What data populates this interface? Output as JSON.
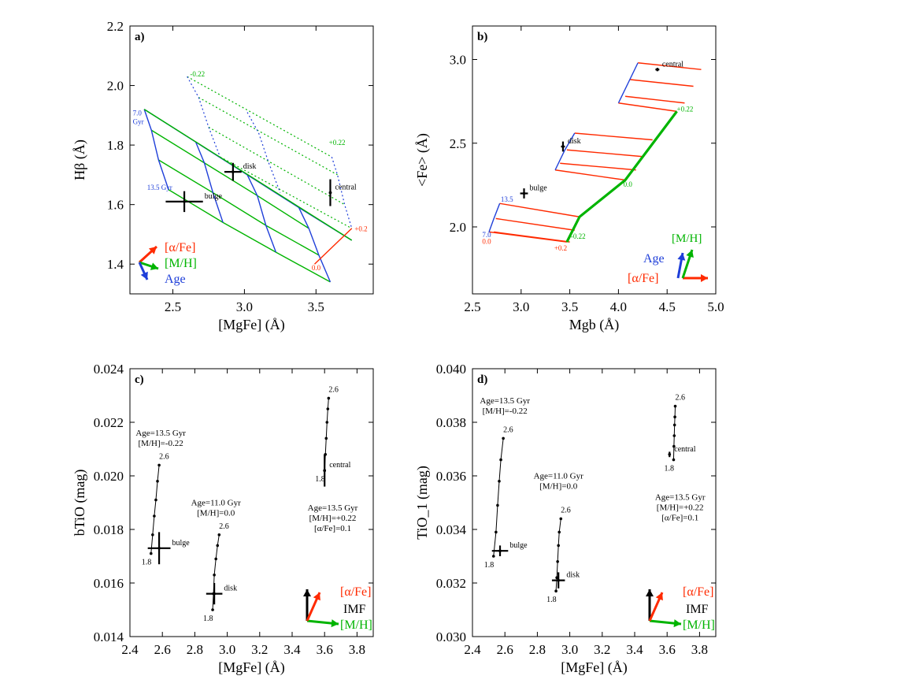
{
  "colors": {
    "alpha": "#ff2a00",
    "mh": "#00b400",
    "age": "#1f3fd9",
    "axis": "#000000"
  },
  "chart_data": [
    {
      "id": "a",
      "type": "line",
      "panel_label": "a)",
      "xlabel": "[MgFe] (Å)",
      "ylabel": "Hβ (Å)",
      "xlim": [
        2.2,
        3.9
      ],
      "ylim": [
        1.3,
        2.2
      ],
      "xticks": [
        2.5,
        3.0,
        3.5
      ],
      "xtick_labels": [
        "2.5",
        "3.0",
        "3.5"
      ],
      "yticks": [
        1.4,
        1.6,
        1.8,
        2.0,
        2.2
      ],
      "ytick_labels": [
        "1.4",
        "1.6",
        "1.8",
        "2.0",
        "2.2"
      ],
      "series": [
        {
          "name": "age-7.0Gyr",
          "style": "blue",
          "x": [
            2.3,
            2.66,
            3.02,
            3.38,
            3.75
          ],
          "y": [
            1.92,
            1.81,
            1.7,
            1.59,
            1.48
          ]
        },
        {
          "name": "age-mid-1",
          "style": "green",
          "x": [
            2.35,
            2.72,
            3.09,
            3.45
          ],
          "y": [
            1.85,
            1.74,
            1.63,
            1.52
          ]
        },
        {
          "name": "age-mid-2",
          "style": "green",
          "x": [
            2.4,
            2.78,
            3.15,
            3.52
          ],
          "y": [
            1.75,
            1.64,
            1.53,
            1.43
          ]
        },
        {
          "name": "age-13.5Gyr",
          "style": "green",
          "x": [
            2.47,
            2.85,
            3.22,
            3.6
          ],
          "y": [
            1.65,
            1.54,
            1.44,
            1.34
          ]
        },
        {
          "name": "mh-left",
          "style": "blue",
          "x": [
            2.3,
            2.35,
            2.4,
            2.47
          ],
          "y": [
            1.92,
            1.85,
            1.75,
            1.65
          ]
        },
        {
          "name": "mh-2",
          "style": "blue",
          "x": [
            2.66,
            2.72,
            2.78,
            2.85
          ],
          "y": [
            1.81,
            1.74,
            1.64,
            1.54
          ]
        },
        {
          "name": "mh-3",
          "style": "blue",
          "x": [
            3.02,
            3.09,
            3.15,
            3.22
          ],
          "y": [
            1.7,
            1.63,
            1.53,
            1.44
          ]
        },
        {
          "name": "mh-4",
          "style": "blue",
          "x": [
            3.38,
            3.45,
            3.52,
            3.6
          ],
          "y": [
            1.59,
            1.52,
            1.43,
            1.34
          ]
        },
        {
          "name": "alpha-0.0",
          "style": "green",
          "x": [
            2.3,
            3.75
          ],
          "y": [
            1.92,
            1.48
          ]
        },
        {
          "name": "alpha-0.2-grid-1",
          "style": "green-dotted",
          "x": [
            2.6,
            3.61
          ],
          "y": [
            2.03,
            1.76
          ]
        },
        {
          "name": "alpha-0.2-grid-2",
          "style": "green-dotted",
          "x": [
            2.68,
            3.65
          ],
          "y": [
            1.96,
            1.7
          ]
        },
        {
          "name": "alpha-0.2-grid-3",
          "style": "green-dotted",
          "x": [
            2.75,
            3.7
          ],
          "y": [
            1.86,
            1.6
          ]
        },
        {
          "name": "alpha-0.2-grid-4",
          "style": "green-dotted",
          "x": [
            2.83,
            3.75
          ],
          "y": [
            1.76,
            1.52
          ]
        },
        {
          "name": "alpha-0.2-mh-1",
          "style": "blue-dotted",
          "x": [
            2.6,
            2.68,
            2.75,
            2.83
          ],
          "y": [
            2.03,
            1.96,
            1.86,
            1.76
          ]
        },
        {
          "name": "alpha-0.2-mh-2",
          "style": "blue-dotted",
          "x": [
            3.02,
            3.1,
            3.17,
            3.25
          ],
          "y": [
            1.91,
            1.84,
            1.74,
            1.64
          ]
        },
        {
          "name": "alpha-0.2-mh-3",
          "style": "blue-dotted",
          "x": [
            3.61,
            3.65,
            3.7,
            3.75
          ],
          "y": [
            1.76,
            1.7,
            1.6,
            1.52
          ]
        },
        {
          "name": "alpha-connector",
          "style": "red",
          "x": [
            3.49,
            3.75
          ],
          "y": [
            1.4,
            1.52
          ]
        }
      ],
      "points": [
        {
          "name": "bulge",
          "x": 2.58,
          "y": 1.61,
          "xerr": 0.13,
          "yerr": 0.035
        },
        {
          "name": "disk",
          "x": 2.92,
          "y": 1.71,
          "xerr": 0.06,
          "yerr": 0.03
        },
        {
          "name": "central",
          "x": 3.6,
          "y": 1.64,
          "xerr": 0.01,
          "yerr": 0.045
        }
      ],
      "annotations": [
        {
          "text": "-0.22",
          "color": "mh",
          "x": 2.62,
          "y": 2.03
        },
        {
          "text": "+0.22",
          "color": "mh",
          "x": 3.59,
          "y": 1.8
        },
        {
          "text": "7.0",
          "color": "age",
          "x": 2.22,
          "y": 1.9
        },
        {
          "text": "Gyr",
          "color": "age",
          "x": 2.22,
          "y": 1.87
        },
        {
          "text": "13.5 Gyr",
          "color": "age",
          "x": 2.32,
          "y": 1.65
        },
        {
          "text": "0.0",
          "color": "alpha",
          "x": 3.47,
          "y": 1.38
        },
        {
          "text": "+0.2",
          "color": "alpha",
          "x": 3.77,
          "y": 1.51
        }
      ],
      "legend": {
        "position": "bottom-left",
        "items": [
          {
            "label": "[α/Fe]",
            "color": "alpha"
          },
          {
            "label": "[M/H]",
            "color": "mh"
          },
          {
            "label": "Age",
            "color": "age"
          }
        ]
      }
    },
    {
      "id": "b",
      "type": "line",
      "panel_label": "b)",
      "xlabel": "Mgb (Å)",
      "ylabel": "<Fe> (Å)",
      "xlim": [
        2.5,
        5.0
      ],
      "ylim": [
        1.6,
        3.2
      ],
      "xticks": [
        2.5,
        3.0,
        3.5,
        4.0,
        4.5,
        5.0
      ],
      "xtick_labels": [
        "2.5",
        "3.0",
        "3.5",
        "4.0",
        "4.5",
        "5.0"
      ],
      "yticks": [
        2.0,
        2.5,
        3.0
      ],
      "ytick_labels": [
        "2.0",
        "2.5",
        "3.0"
      ],
      "series": [
        {
          "name": "alpha-lines-low-1",
          "style": "red",
          "x": [
            2.78,
            3.6
          ],
          "y": [
            2.14,
            2.06
          ]
        },
        {
          "name": "alpha-lines-low-2",
          "style": "red",
          "x": [
            2.74,
            3.55
          ],
          "y": [
            2.05,
            1.98
          ]
        },
        {
          "name": "alpha-lines-low-3",
          "style": "red",
          "x": [
            2.72,
            3.5
          ],
          "y": [
            1.97,
            1.91
          ]
        },
        {
          "name": "alpha-lines-low-4",
          "style": "red",
          "x": [
            2.67,
            3.47
          ],
          "y": [
            1.97,
            1.91
          ]
        },
        {
          "name": "alpha-lines-mid-1",
          "style": "red",
          "x": [
            3.55,
            4.35
          ],
          "y": [
            2.56,
            2.52
          ]
        },
        {
          "name": "alpha-lines-mid-2",
          "style": "red",
          "x": [
            3.47,
            4.25
          ],
          "y": [
            2.46,
            2.42
          ]
        },
        {
          "name": "alpha-lines-mid-3",
          "style": "red",
          "x": [
            3.4,
            4.18
          ],
          "y": [
            2.38,
            2.34
          ]
        },
        {
          "name": "alpha-lines-mid-4",
          "style": "red",
          "x": [
            3.35,
            4.07
          ],
          "y": [
            2.34,
            2.28
          ]
        },
        {
          "name": "alpha-lines-high-1",
          "style": "red",
          "x": [
            4.2,
            4.85
          ],
          "y": [
            2.98,
            2.94
          ]
        },
        {
          "name": "alpha-lines-high-2",
          "style": "red",
          "x": [
            4.12,
            4.77
          ],
          "y": [
            2.88,
            2.84
          ]
        },
        {
          "name": "alpha-lines-high-3",
          "style": "red",
          "x": [
            4.07,
            4.68
          ],
          "y": [
            2.78,
            2.74
          ]
        },
        {
          "name": "alpha-lines-high-4",
          "style": "red",
          "x": [
            4.0,
            4.6
          ],
          "y": [
            2.74,
            2.69
          ]
        },
        {
          "name": "age-low",
          "style": "blue",
          "x": [
            2.67,
            2.72,
            2.78
          ],
          "y": [
            1.97,
            2.05,
            2.14
          ]
        },
        {
          "name": "age-mid",
          "style": "blue",
          "x": [
            3.35,
            3.45,
            3.55
          ],
          "y": [
            2.34,
            2.46,
            2.56
          ]
        },
        {
          "name": "age-high",
          "style": "blue",
          "x": [
            4.0,
            4.1,
            4.2
          ],
          "y": [
            2.74,
            2.86,
            2.98
          ]
        },
        {
          "name": "mh-track",
          "style": "green-thick",
          "x": [
            3.47,
            3.6,
            4.07,
            4.6
          ],
          "y": [
            1.91,
            2.06,
            2.28,
            2.69
          ]
        }
      ],
      "points": [
        {
          "name": "bulge",
          "x": 3.03,
          "y": 2.2,
          "xerr": 0.04,
          "yerr": 0.03
        },
        {
          "name": "disk",
          "x": 3.43,
          "y": 2.48,
          "xerr": 0.02,
          "yerr": 0.03
        },
        {
          "name": "central",
          "x": 4.4,
          "y": 2.94,
          "xerr": 0.02,
          "yerr": 0.01
        }
      ],
      "annotations": [
        {
          "text": "13.5",
          "color": "age",
          "x": 2.79,
          "y": 2.15
        },
        {
          "text": "7.0",
          "color": "age",
          "x": 2.6,
          "y": 1.94
        },
        {
          "text": "0.0",
          "color": "alpha",
          "x": 2.6,
          "y": 1.9
        },
        {
          "text": "+0.2",
          "color": "alpha",
          "x": 3.34,
          "y": 1.86
        },
        {
          "text": "-0.22",
          "color": "mh",
          "x": 3.51,
          "y": 1.93
        },
        {
          "text": "0.0",
          "color": "mh",
          "x": 4.05,
          "y": 2.24
        },
        {
          "text": "+0.22",
          "color": "mh",
          "x": 4.6,
          "y": 2.69
        }
      ],
      "legend": {
        "position": "bottom-right",
        "items": [
          {
            "label": "[M/H]",
            "color": "mh"
          },
          {
            "label": "Age",
            "color": "age"
          },
          {
            "label": "[α/Fe]",
            "color": "alpha"
          }
        ]
      }
    },
    {
      "id": "c",
      "type": "scatter",
      "panel_label": "c)",
      "xlabel": "[MgFe]  (Å)",
      "ylabel": "bTiO (mag)",
      "xlim": [
        2.4,
        3.9
      ],
      "ylim": [
        0.014,
        0.024
      ],
      "xticks": [
        2.4,
        2.6,
        2.8,
        3.0,
        3.2,
        3.4,
        3.6,
        3.8
      ],
      "xtick_labels": [
        "2.4",
        "2.6",
        "2.8",
        "3.0",
        "3.2",
        "3.4",
        "3.6",
        "3.8"
      ],
      "yticks": [
        0.014,
        0.016,
        0.018,
        0.02,
        0.022,
        0.024
      ],
      "ytick_labels": [
        "0.014",
        "0.016",
        "0.018",
        "0.020",
        "0.022",
        "0.024"
      ],
      "imf_tracks": [
        {
          "name": "bulge-track",
          "x": [
            2.53,
            2.54,
            2.55,
            2.56,
            2.57,
            2.58
          ],
          "y": [
            0.0171,
            0.0178,
            0.0185,
            0.0191,
            0.0198,
            0.0204
          ],
          "low": "1.8",
          "high": "2.6"
        },
        {
          "name": "disk-track",
          "x": [
            2.91,
            2.915,
            2.92,
            2.93,
            2.94,
            2.95
          ],
          "y": [
            0.015,
            0.0156,
            0.0163,
            0.0169,
            0.0174,
            0.0178
          ],
          "low": "1.8",
          "high": "2.6"
        },
        {
          "name": "central-track",
          "x": [
            3.6,
            3.605,
            3.61,
            3.615,
            3.62,
            3.625
          ],
          "y": [
            0.0202,
            0.0208,
            0.0214,
            0.022,
            0.0225,
            0.0229
          ],
          "low": "1.8",
          "high": "2.6"
        }
      ],
      "points": [
        {
          "name": "bulge",
          "x": 2.58,
          "y": 0.0173,
          "xerr": 0.07,
          "yerr": 0.0006
        },
        {
          "name": "disk",
          "x": 2.92,
          "y": 0.0156,
          "xerr": 0.05,
          "yerr": 0.0004
        },
        {
          "name": "central",
          "x": 3.6,
          "y": 0.0202,
          "xerr": 0.004,
          "yerr": 0.0006
        }
      ],
      "notes": [
        {
          "lines": [
            "Age=13.5 Gyr",
            "[M/H]=-0.22"
          ],
          "x": 2.59,
          "y": 0.0215
        },
        {
          "lines": [
            "Age=11.0 Gyr",
            "[M/H]=0.0"
          ],
          "x": 2.93,
          "y": 0.0189
        },
        {
          "lines": [
            "Age=13.5 Gyr",
            "[M/H]=+0.22",
            "[α/Fe]=0.1"
          ],
          "x": 3.65,
          "y": 0.0187
        }
      ],
      "legend": {
        "position": "bottom-right",
        "items": [
          {
            "label": "[α/Fe]",
            "color": "alpha"
          },
          {
            "label": "IMF",
            "color": "axis"
          },
          {
            "label": "[M/H]",
            "color": "mh"
          }
        ]
      }
    },
    {
      "id": "d",
      "type": "scatter",
      "panel_label": "d)",
      "xlabel": "[MgFe]  (Å)",
      "ylabel": "TiO_1 (mag)",
      "xlim": [
        2.4,
        3.9
      ],
      "ylim": [
        0.03,
        0.04
      ],
      "xticks": [
        2.4,
        2.6,
        2.8,
        3.0,
        3.2,
        3.4,
        3.6,
        3.8
      ],
      "xtick_labels": [
        "2.4",
        "2.6",
        "2.8",
        "3.0",
        "3.2",
        "3.4",
        "3.6",
        "3.8"
      ],
      "yticks": [
        0.03,
        0.032,
        0.034,
        0.036,
        0.038,
        0.04
      ],
      "ytick_labels": [
        "0.030",
        "0.032",
        "0.034",
        "0.036",
        "0.038",
        "0.040"
      ],
      "imf_tracks": [
        {
          "name": "bulge-track",
          "x": [
            2.53,
            2.545,
            2.555,
            2.565,
            2.575,
            2.59
          ],
          "y": [
            0.033,
            0.0339,
            0.0349,
            0.0358,
            0.0366,
            0.0374
          ],
          "low": "1.8",
          "high": "2.6"
        },
        {
          "name": "disk-track",
          "x": [
            2.915,
            2.92,
            2.925,
            2.93,
            2.935,
            2.945
          ],
          "y": [
            0.0317,
            0.0322,
            0.0328,
            0.0334,
            0.0339,
            0.0344
          ],
          "low": "1.8",
          "high": "2.6"
        },
        {
          "name": "central-track",
          "x": [
            3.64,
            3.642,
            3.644,
            3.646,
            3.648,
            3.65
          ],
          "y": [
            0.0366,
            0.0371,
            0.0375,
            0.0379,
            0.0382,
            0.0386
          ],
          "low": "1.8",
          "high": "2.6"
        }
      ],
      "points": [
        {
          "name": "bulge",
          "x": 2.57,
          "y": 0.0332,
          "xerr": 0.05,
          "yerr": 0.0002
        },
        {
          "name": "disk",
          "x": 2.93,
          "y": 0.0321,
          "xerr": 0.04,
          "yerr": 0.0003
        },
        {
          "name": "central",
          "x": 3.615,
          "y": 0.0368,
          "xerr": 0.008,
          "yerr": 0.0001
        }
      ],
      "notes": [
        {
          "lines": [
            "Age=13.5 Gyr",
            "[M/H]=-0.22"
          ],
          "x": 2.6,
          "y": 0.0387
        },
        {
          "lines": [
            "Age=11.0 Gyr",
            "[M/H]=0.0"
          ],
          "x": 2.93,
          "y": 0.0359
        },
        {
          "lines": [
            "Age=13.5 Gyr",
            "[M/H]=+0.22",
            "[α/Fe]=0.1"
          ],
          "x": 3.68,
          "y": 0.0351
        }
      ],
      "legend": {
        "position": "bottom-right",
        "items": [
          {
            "label": "[α/Fe]",
            "color": "alpha"
          },
          {
            "label": "IMF",
            "color": "axis"
          },
          {
            "label": "[M/H]",
            "color": "mh"
          }
        ]
      }
    }
  ]
}
